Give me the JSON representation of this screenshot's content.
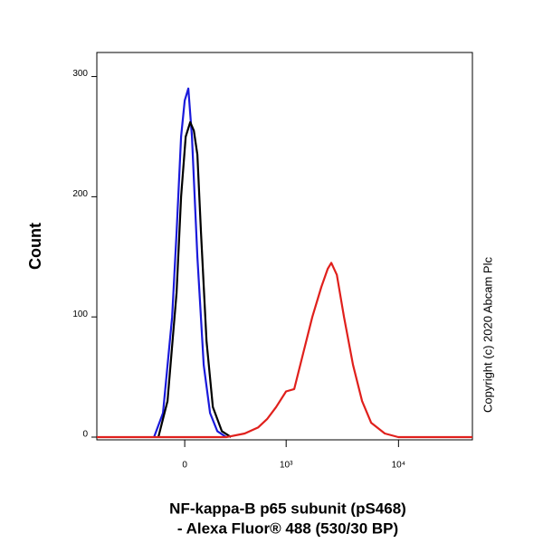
{
  "chart_data": {
    "type": "line",
    "x_label": [
      "NF-kappa-B p65 subunit (pS468)",
      "- Alexa Fluor® 488 (530/30 BP)"
    ],
    "y_label": "Count",
    "annotation": "Copyright (c) 2020 Abcam Plc",
    "x_scale": "biexponential",
    "xlim": [
      -750,
      45000
    ],
    "ylim": [
      0,
      320
    ],
    "xticks": [
      0,
      {
        "value": 1000,
        "label": "10³"
      },
      {
        "value": 10000,
        "label": "10⁴"
      }
    ],
    "yticks": [
      0,
      100,
      200,
      300
    ],
    "series": [
      {
        "name": "blue",
        "color": "#1a1adb",
        "x": [
          -172,
          -118,
          -67,
          -43,
          -19,
          0,
          19,
          38,
          67,
          102,
          139,
          184,
          245
        ],
        "values": [
          0,
          20,
          100,
          170,
          250,
          280,
          290,
          250,
          150,
          60,
          20,
          5,
          0
        ]
      },
      {
        "name": "black",
        "color": "#000000",
        "x": [
          -145,
          -92,
          -43,
          -19,
          5,
          29,
          48,
          67,
          87,
          118,
          156,
          214,
          280
        ],
        "values": [
          0,
          30,
          120,
          200,
          250,
          262,
          255,
          235,
          170,
          80,
          25,
          5,
          0
        ]
      },
      {
        "name": "red",
        "color": "#e0201c",
        "x": [
          -750,
          245,
          399,
          544,
          665,
          809,
          998,
          1183,
          1429,
          1721,
          2074,
          2361,
          2541,
          2843,
          3295,
          3963,
          4765,
          5728,
          7560,
          9959,
          45000
        ],
        "values": [
          0,
          0,
          3,
          8,
          15,
          25,
          38,
          40,
          70,
          100,
          125,
          140,
          145,
          135,
          100,
          60,
          30,
          12,
          3,
          0,
          0
        ]
      }
    ]
  }
}
